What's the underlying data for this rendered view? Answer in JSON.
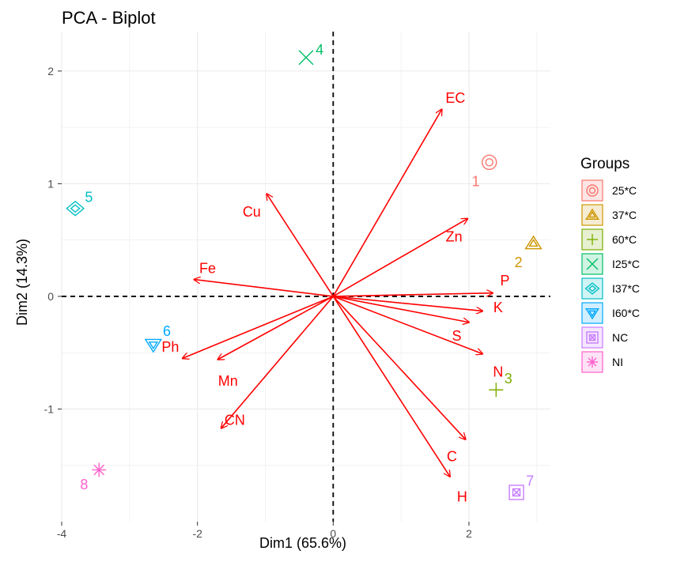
{
  "chart_data": {
    "type": "scatter",
    "subtype": "pca-biplot",
    "title": "PCA - Biplot",
    "xlabel": "Dim1 (65.6%)",
    "ylabel": "Dim2 (14.3%)",
    "xlim": [
      -4.0,
      3.2
    ],
    "ylim": [
      -2.0,
      2.35
    ],
    "xticks": [
      -4,
      -2,
      0,
      2
    ],
    "yticks": [
      -1,
      0,
      1,
      2
    ],
    "xtick_labels": [
      "-4",
      "-2",
      "0",
      "2"
    ],
    "ytick_labels": [
      "-1",
      "0",
      "1",
      "2"
    ],
    "grid": true,
    "reference_lines": {
      "x": 0,
      "y": 0,
      "style": "dashed"
    },
    "legend": {
      "title": "Groups",
      "position": "right",
      "entries": [
        {
          "label": "25*C",
          "color": "#f8766d",
          "shape": "circle-ring"
        },
        {
          "label": "37*C",
          "color": "#cd9600",
          "shape": "triangle-in-triangle"
        },
        {
          "label": "60*C",
          "color": "#7cae00",
          "shape": "circle-plus"
        },
        {
          "label": "I25*C",
          "color": "#00be67",
          "shape": "circle-x"
        },
        {
          "label": "I37*C",
          "color": "#00bfc4",
          "shape": "diamond-in-diamond"
        },
        {
          "label": "I60*C",
          "color": "#00a9ff",
          "shape": "triangle-down-in-triangle"
        },
        {
          "label": "NC",
          "color": "#c77cff",
          "shape": "square-in-square"
        },
        {
          "label": "NI",
          "color": "#ff61cc",
          "shape": "asterisk"
        }
      ]
    },
    "points": [
      {
        "label": "1",
        "group": "25*C",
        "x": 2.3,
        "y": 1.19,
        "label_dx": -0.2,
        "label_dy": -0.17
      },
      {
        "label": "2",
        "group": "37*C",
        "x": 2.95,
        "y": 0.47,
        "label_dx": -0.22,
        "label_dy": -0.17
      },
      {
        "label": "3",
        "group": "60*C",
        "x": 2.4,
        "y": -0.83,
        "label_dx": 0.18,
        "label_dy": 0.1
      },
      {
        "label": "4",
        "group": "I25*C",
        "x": -0.4,
        "y": 2.12,
        "label_dx": 0.2,
        "label_dy": 0.07
      },
      {
        "label": "5",
        "group": "I37*C",
        "x": -3.8,
        "y": 0.78,
        "label_dx": 0.2,
        "label_dy": 0.1
      },
      {
        "label": "6",
        "group": "I60*C",
        "x": -2.65,
        "y": -0.43,
        "label_dx": 0.2,
        "label_dy": 0.12
      },
      {
        "label": "7",
        "group": "NC",
        "x": 2.7,
        "y": -1.74,
        "label_dx": 0.2,
        "label_dy": 0.1
      },
      {
        "label": "8",
        "group": "NI",
        "x": -3.45,
        "y": -1.54,
        "label_dx": -0.22,
        "label_dy": -0.13
      }
    ],
    "loadings": [
      {
        "label": "EC",
        "x": 1.6,
        "y": 1.66,
        "label_x": 1.8,
        "label_y": 1.76
      },
      {
        "label": "Cu",
        "x": -0.98,
        "y": 0.91,
        "label_x": -1.2,
        "label_y": 0.75
      },
      {
        "label": "Zn",
        "x": 1.98,
        "y": 0.69,
        "label_x": 1.78,
        "label_y": 0.53
      },
      {
        "label": "Fe",
        "x": -2.05,
        "y": 0.15,
        "label_x": -1.85,
        "label_y": 0.25
      },
      {
        "label": "P",
        "x": 2.35,
        "y": 0.03,
        "label_x": 2.53,
        "label_y": 0.14
      },
      {
        "label": "K",
        "x": 2.2,
        "y": -0.13,
        "label_x": 2.43,
        "label_y": -0.1
      },
      {
        "label": "S",
        "x": 2.0,
        "y": -0.23,
        "label_x": 1.82,
        "label_y": -0.35
      },
      {
        "label": "N",
        "x": 2.2,
        "y": -0.51,
        "label_x": 2.43,
        "label_y": -0.67
      },
      {
        "label": "Ph",
        "x": -2.22,
        "y": -0.55,
        "label_x": -2.4,
        "label_y": -0.45
      },
      {
        "label": "Mn",
        "x": -1.7,
        "y": -0.56,
        "label_x": -1.55,
        "label_y": -0.75
      },
      {
        "label": "CN",
        "x": -1.65,
        "y": -1.17,
        "label_x": -1.45,
        "label_y": -1.1
      },
      {
        "label": "C",
        "x": 1.95,
        "y": -1.27,
        "label_x": 1.75,
        "label_y": -1.42
      },
      {
        "label": "H",
        "x": 1.72,
        "y": -1.6,
        "label_x": 1.9,
        "label_y": -1.78
      }
    ],
    "colors": {
      "loading": "#ff0000",
      "grid": "#ebebeb",
      "axis_text": "#4d4d4d"
    }
  }
}
